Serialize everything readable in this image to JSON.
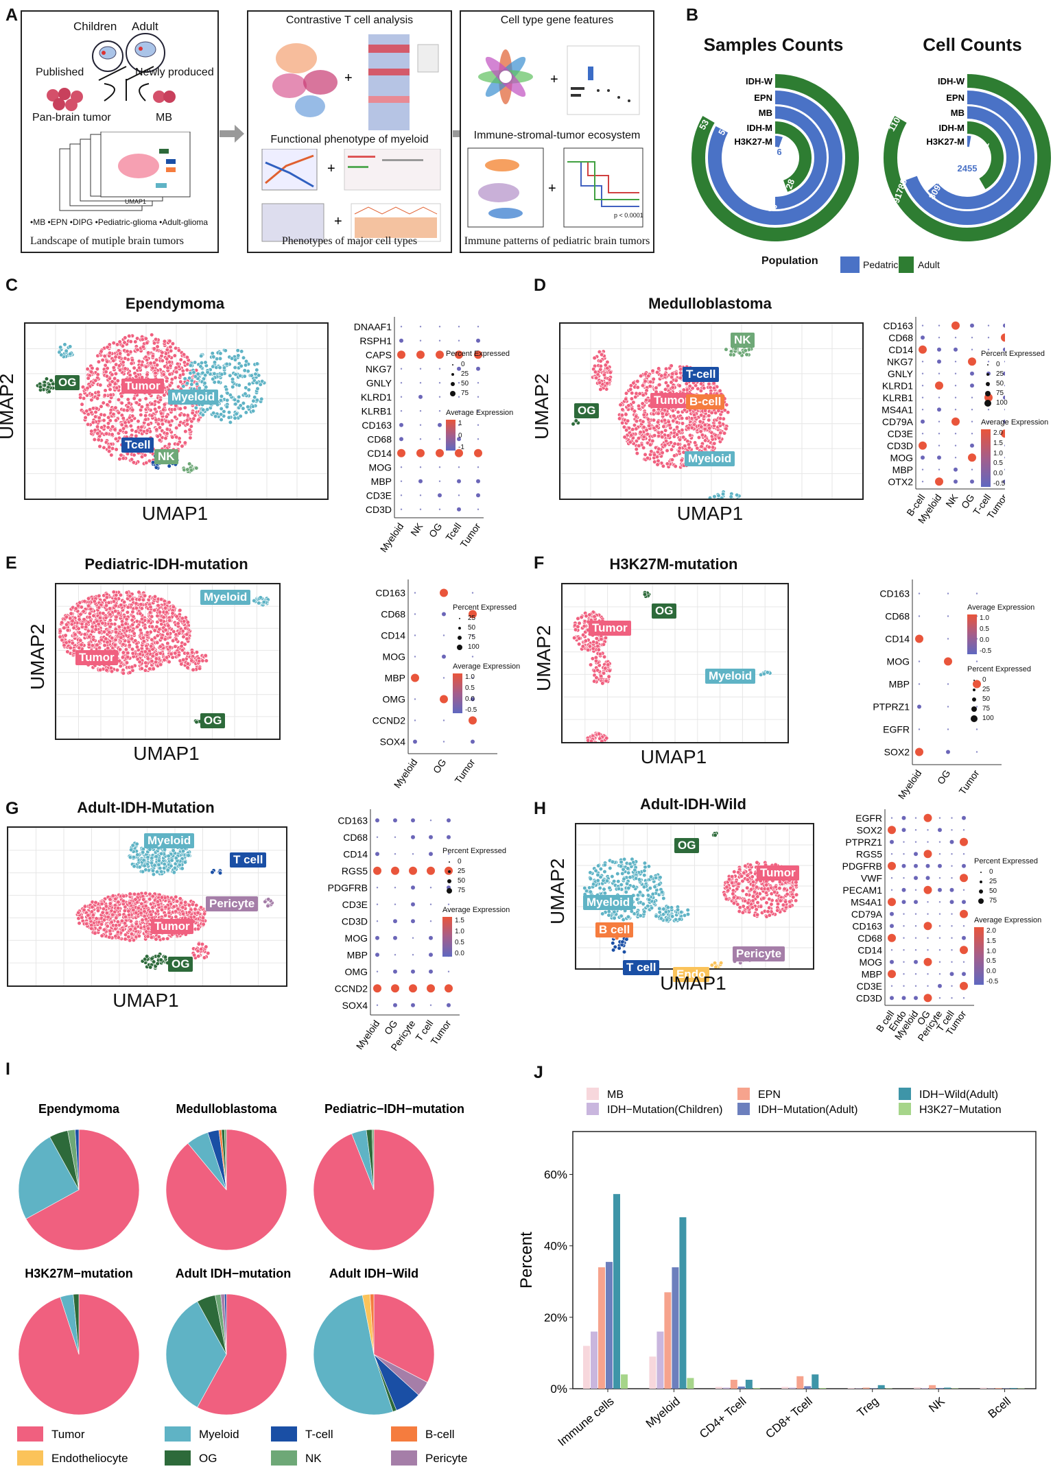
{
  "colors": {
    "tumor": "#f0607f",
    "myeloid": "#5fb3c5",
    "tcell": "#1a4fa5",
    "bcell": "#f57c3e",
    "endo": "#fbc35a",
    "og": "#2d6a3a",
    "nk": "#6ea877",
    "pericyte": "#a57ea8",
    "pediatric": "#4a72c6",
    "adult": "#2e7d32"
  },
  "panelA": {
    "letter": "A",
    "box1": {
      "children": "Children",
      "adult": "Adult",
      "published": "Published",
      "newly": "Newly produced",
      "panbrain": "Pan-brain tumor",
      "mb": "MB",
      "umap1": "UMAP1",
      "umap2": "UMAP2",
      "tags": "•MB  •EPN  •DIPG  •Pediatric-glioma  •Adult-glioma",
      "caption": "Landscape of mutiple brain tumors"
    },
    "box2": {
      "t1": "Contrastive T cell analysis",
      "t2": "Functional phenotype of myeloid",
      "caption": "Phenotypes of major cell types"
    },
    "box3": {
      "t1": "Cell type gene features",
      "t2": "Immune-stromal-tumor ecosystem",
      "caption": "Immune patterns of  pediatric brain tumors",
      "pval": "p < 0.0001"
    }
  },
  "panelB": {
    "letter": "B",
    "left_title": "Samples Counts",
    "right_title": "Cell Counts",
    "rings": [
      "IDH-W",
      "EPN",
      "MB",
      "IDH-M",
      "H3K27-M"
    ],
    "sample_values": {
      "adult": "53",
      "ped_outer": "52",
      "h3": "6",
      "idhm": "28",
      "mb": "32"
    },
    "cell_values": {
      "adult": "110946",
      "ped_outer": "91788",
      "mb": "80918",
      "h3": "2455",
      "idhm": "38341"
    },
    "legend_title": "Population",
    "legend_items": [
      "Pedatric",
      "Adult"
    ]
  },
  "panelC": {
    "letter": "C",
    "title": "Ependymoma",
    "xlab": "UMAP1",
    "ylab": "UMAP2",
    "labels": [
      "Tumor",
      "Myeloid",
      "OG",
      "Tcell",
      "NK"
    ],
    "genes": [
      "DNAAF1",
      "RSPH1",
      "CAPS",
      "NKG7",
      "GNLY",
      "KLRD1",
      "KLRB1",
      "CD163",
      "CD68",
      "CD14",
      "MOG",
      "MBP",
      "CD3E",
      "CD3D"
    ],
    "groups": [
      "Myeloid",
      "NK",
      "OG",
      "Tcell",
      "Tumor"
    ],
    "pe_title": "Percent Expressed",
    "pe": [
      "0",
      "25",
      "50",
      "75"
    ],
    "ae_title": "Average Expression",
    "ae": [
      "1",
      "0",
      "-1"
    ]
  },
  "panelD": {
    "letter": "D",
    "title": "Medulloblastoma",
    "xlab": "UMAP1",
    "ylab": "UMAP2",
    "labels": [
      "Tumor",
      "NK",
      "T-cell",
      "B-cell",
      "OG",
      "Myeloid"
    ],
    "genes": [
      "CD163",
      "CD68",
      "CD14",
      "NKG7",
      "GNLY",
      "KLRD1",
      "KLRB1",
      "MS4A1",
      "CD79A",
      "CD3E",
      "CD3D",
      "MOG",
      "MBP",
      "OTX2"
    ],
    "groups": [
      "B-cell",
      "Myeloid",
      "NK",
      "OG",
      "T-cell",
      "Tumor"
    ],
    "pe_title": "Percent Expressed",
    "pe": [
      "0",
      "25",
      "50",
      "75",
      "100"
    ],
    "ae_title": "Average Expression",
    "ae": [
      "2.0",
      "1.5",
      "1.0",
      "0.5",
      "0.0",
      "-0.5"
    ]
  },
  "panelE": {
    "letter": "E",
    "title": "Pediatric-IDH-mutation",
    "xlab": "UMAP1",
    "ylab": "UMAP2",
    "labels": [
      "Tumor",
      "Myeloid",
      "OG"
    ],
    "genes": [
      "CD163",
      "CD68",
      "CD14",
      "MOG",
      "MBP",
      "OMG",
      "CCND2",
      "SOX4"
    ],
    "groups": [
      "Myeloid",
      "OG",
      "Tumor"
    ],
    "pe_title": "Percent Expressed",
    "pe": [
      "25",
      "50",
      "75",
      "100"
    ],
    "ae_title": "Average Expression",
    "ae": [
      "1.0",
      "0.5",
      "0.0",
      "-0.5"
    ]
  },
  "panelF": {
    "letter": "F",
    "title": "H3K27M-mutation",
    "xlab": "UMAP1",
    "ylab": "UMAP2",
    "labels": [
      "Tumor",
      "OG",
      "Myeloid"
    ],
    "genes": [
      "CD163",
      "CD68",
      "CD14",
      "MOG",
      "MBP",
      "PTPRZ1",
      "EGFR",
      "SOX2"
    ],
    "groups": [
      "Myeloid",
      "OG",
      "Tumor"
    ],
    "ae_title": "Average Expression",
    "ae": [
      "1.0",
      "0.5",
      "0.0",
      "-0.5"
    ],
    "pe_title": "Percent Expressed",
    "pe": [
      "0",
      "25",
      "50",
      "75",
      "100"
    ]
  },
  "panelG": {
    "letter": "G",
    "title": "Adult-IDH-Mutation",
    "xlab": "UMAP1",
    "ylab": "UMAP2",
    "labels": [
      "Tumor",
      "Myeloid",
      "T cell",
      "Pericyte",
      "OG"
    ],
    "genes": [
      "CD163",
      "CD68",
      "CD14",
      "RGS5",
      "PDGFRB",
      "CD3E",
      "CD3D",
      "MOG",
      "MBP",
      "OMG",
      "CCND2",
      "SOX4"
    ],
    "groups": [
      "Myeloid",
      "OG",
      "Pericyte",
      "T cell",
      "Tumor"
    ],
    "pe_title": "Percent Expressed",
    "pe": [
      "0",
      "25",
      "50",
      "75"
    ],
    "ae_title": "Average Expression",
    "ae": [
      "1.5",
      "1.0",
      "0.5",
      "0.0"
    ]
  },
  "panelH": {
    "letter": "H",
    "title": "Adult-IDH-Wild",
    "xlab": "UMAP1",
    "ylab": "UMAP2",
    "labels": [
      "Tumor",
      "OG",
      "Myeloid",
      "B cell",
      "T cell",
      "Endo",
      "Pericyte"
    ],
    "genes": [
      "EGFR",
      "SOX2",
      "PTPRZ1",
      "RGS5",
      "PDGFRB",
      "VWF",
      "PECAM1",
      "MS4A1",
      "CD79A",
      "CD163",
      "CD68",
      "CD14",
      "MOG",
      "MBP",
      "CD3E",
      "CD3D"
    ],
    "groups": [
      "B cell",
      "Endo",
      "Myeloid",
      "OG",
      "Pericyte",
      "T cell",
      "Tumor"
    ],
    "pe_title": "Percent Expressed",
    "pe": [
      "0",
      "25",
      "50",
      "75"
    ],
    "ae_title": "Average Expression",
    "ae": [
      "2.0",
      "1.5",
      "1.0",
      "0.5",
      "0.0",
      "-0.5"
    ]
  },
  "chart_data": [
    {
      "type": "pie",
      "panel": "I",
      "title": "Ependymoma",
      "labels": [
        "Tumor",
        "Myeloid",
        "OG",
        "NK",
        "T-cell"
      ],
      "values": [
        67,
        25,
        5,
        2,
        1
      ]
    },
    {
      "type": "pie",
      "panel": "I",
      "title": "Medulloblastoma",
      "labels": [
        "Tumor",
        "Myeloid",
        "T-cell",
        "B-cell",
        "OG",
        "NK"
      ],
      "values": [
        89,
        6,
        3,
        0.7,
        0.8,
        0.5
      ]
    },
    {
      "type": "pie",
      "panel": "I",
      "title": "Pediatric−IDH−mutation",
      "labels": [
        "Tumor",
        "Myeloid",
        "OG",
        "NK"
      ],
      "values": [
        94,
        4,
        1.5,
        0.5
      ]
    },
    {
      "type": "pie",
      "panel": "I",
      "title": "H3K27M−mutation",
      "labels": [
        "Tumor",
        "Myeloid",
        "OG"
      ],
      "values": [
        95,
        3.5,
        1.5
      ]
    },
    {
      "type": "pie",
      "panel": "I",
      "title": "Adult IDH−mutation",
      "labels": [
        "Tumor",
        "Myeloid",
        "OG",
        "NK",
        "Pericyte",
        "T-cell"
      ],
      "values": [
        58,
        34,
        5,
        1.5,
        1,
        0.5
      ]
    },
    {
      "type": "pie",
      "panel": "I",
      "title": "Adult IDH−Wild",
      "labels": [
        "Tumor",
        "Pericyte",
        "T-cell",
        "OG",
        "Myeloid",
        "Endotheliocyte",
        "B-cell"
      ],
      "values": [
        32,
        4,
        7,
        1,
        51,
        2,
        1
      ]
    },
    {
      "type": "bar",
      "panel": "J",
      "categories": [
        "Immune cells",
        "Myeloid",
        "CD4+ Tcell",
        "CD8+ Tcell",
        "Treg",
        "NK",
        "Bcell"
      ],
      "series": [
        {
          "name": "MB",
          "values": [
            12,
            9,
            0.5,
            0.5,
            0.2,
            0.4,
            0.3
          ]
        },
        {
          "name": "IDH−Mutation(Children)",
          "values": [
            16,
            16,
            0.3,
            0.3,
            0.1,
            0.2,
            0.1
          ]
        },
        {
          "name": "EPN",
          "values": [
            34,
            27,
            2.5,
            3.5,
            0.3,
            1.0,
            0.2
          ]
        },
        {
          "name": "IDH−Mutation(Adult)",
          "values": [
            35.5,
            34,
            0.6,
            0.7,
            0.1,
            0.2,
            0.1
          ]
        },
        {
          "name": "IDH−Wild(Adult)",
          "values": [
            54.5,
            48,
            2.5,
            4,
            1,
            0.3,
            0.2
          ]
        },
        {
          "name": "H3K27−Mutation",
          "values": [
            4,
            3,
            0.2,
            0.2,
            0.1,
            0.1,
            0.1
          ]
        }
      ],
      "ylabel": "Percent",
      "yticks": [
        "0%",
        "20%",
        "40%",
        "60%"
      ],
      "ylim": [
        0,
        72
      ]
    }
  ],
  "panelI": {
    "letter": "I",
    "legend": [
      "Tumor",
      "Myeloid",
      "T-cell",
      "B-cell",
      "Endotheliocyte",
      "OG",
      "NK",
      "Pericyte"
    ]
  },
  "panelJ": {
    "letter": "J"
  }
}
